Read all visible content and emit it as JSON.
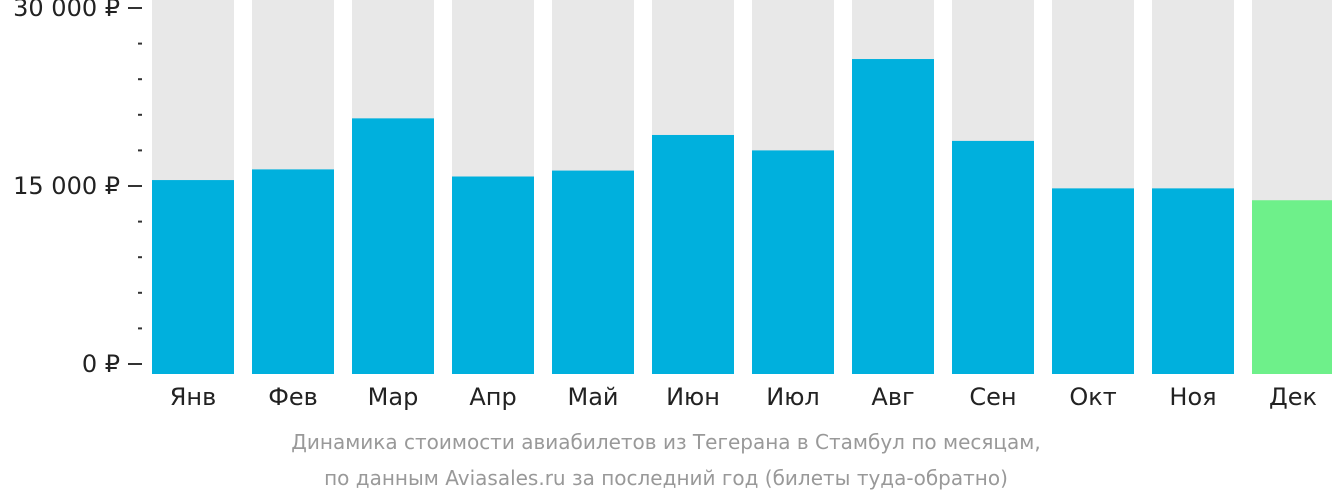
{
  "chart_data": {
    "type": "bar",
    "title": "",
    "xlabel": "",
    "ylabel": "",
    "categories": [
      "Янв",
      "Фев",
      "Мар",
      "Апр",
      "Май",
      "Июн",
      "Июл",
      "Авг",
      "Сен",
      "Окт",
      "Ноя",
      "Дек"
    ],
    "values": [
      15500,
      16400,
      20700,
      15800,
      16300,
      19300,
      18000,
      25700,
      18800,
      14800,
      14800,
      13800
    ],
    "ylim": [
      0,
      30000
    ],
    "yticks": [
      {
        "value": 0,
        "label": "0 ₽"
      },
      {
        "value": 15000,
        "label": "15 000 ₽"
      },
      {
        "value": 30000,
        "label": "30 000 ₽"
      }
    ],
    "minor_tick_step": 3000,
    "grid": false,
    "colors": {
      "bar": "#00b0dd",
      "bar_highlight": "#6ef08a",
      "bar_background": "#e8e8e8",
      "axis": "#333333",
      "tick_label": "#222222"
    },
    "highlight_index": 11,
    "caption": [
      "Динамика стоимости авиабилетов из Тегерана в Стамбул по месяцам,",
      "по данным Aviasales.ru за последний год (билеты туда-обратно)"
    ]
  }
}
